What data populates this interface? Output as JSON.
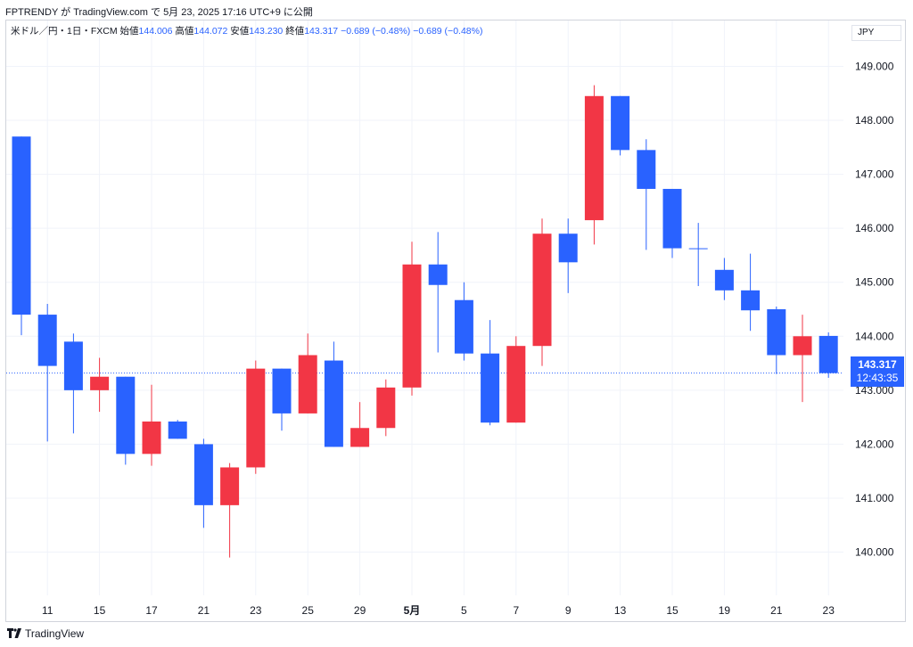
{
  "header": {
    "published_text": "FPTRENDY が TradingView.com で 5月 23, 2025 17:16 UTC+9 に公開"
  },
  "legend": {
    "symbol": "米ドル／円・1日・FXCM",
    "open_label": "始値",
    "open_value": "144.006",
    "high_label": "高値",
    "high_value": "144.072",
    "low_label": "安値",
    "low_value": "143.230",
    "close_label": "終値",
    "close_value": "143.317",
    "change1": "−0.689 (−0.48%)",
    "change2": "−0.689 (−0.48%)"
  },
  "currency_button": "JPY",
  "price_tag": {
    "price": "143.317",
    "countdown": "12:43:35"
  },
  "footer": {
    "brand": "TradingView"
  },
  "colors": {
    "up": "#f23645",
    "down": "#2962ff",
    "grid": "#f0f3fa",
    "last_price_line": "#2962ff"
  },
  "chart_data": {
    "type": "candlestick",
    "y_range": [
      139.2,
      149.85
    ],
    "y_ticks": [
      "149.000",
      "148.000",
      "147.000",
      "146.000",
      "145.000",
      "144.000",
      "143.000",
      "142.000",
      "141.000",
      "140.000"
    ],
    "y_tick_values": [
      149,
      148,
      147,
      146,
      145,
      144,
      143,
      142,
      141,
      140
    ],
    "x_labels": [
      {
        "index": 1,
        "label": "11",
        "bold": false
      },
      {
        "index": 3,
        "label": "15",
        "bold": false
      },
      {
        "index": 5,
        "label": "17",
        "bold": false
      },
      {
        "index": 7,
        "label": "21",
        "bold": false
      },
      {
        "index": 9,
        "label": "23",
        "bold": false
      },
      {
        "index": 11,
        "label": "25",
        "bold": false
      },
      {
        "index": 13,
        "label": "29",
        "bold": false
      },
      {
        "index": 15,
        "label": "5月",
        "bold": true
      },
      {
        "index": 17,
        "label": "5",
        "bold": false
      },
      {
        "index": 19,
        "label": "7",
        "bold": false
      },
      {
        "index": 21,
        "label": "9",
        "bold": false
      },
      {
        "index": 23,
        "label": "13",
        "bold": false
      },
      {
        "index": 25,
        "label": "15",
        "bold": false
      },
      {
        "index": 27,
        "label": "19",
        "bold": false
      },
      {
        "index": 29,
        "label": "21",
        "bold": false
      },
      {
        "index": 31,
        "label": "23",
        "bold": false
      }
    ],
    "last_price": 143.317,
    "candles": [
      {
        "o": 147.7,
        "h": 147.7,
        "l": 144.02,
        "c": 144.4
      },
      {
        "o": 144.4,
        "h": 144.6,
        "l": 142.05,
        "c": 143.45
      },
      {
        "o": 143.9,
        "h": 144.05,
        "l": 142.2,
        "c": 143.0
      },
      {
        "o": 143.0,
        "h": 143.6,
        "l": 142.6,
        "c": 143.25
      },
      {
        "o": 143.25,
        "h": 143.25,
        "l": 141.62,
        "c": 141.82
      },
      {
        "o": 141.82,
        "h": 143.1,
        "l": 141.6,
        "c": 142.42
      },
      {
        "o": 142.42,
        "h": 142.45,
        "l": 142.1,
        "c": 142.1
      },
      {
        "o": 142.0,
        "h": 142.1,
        "l": 140.45,
        "c": 140.87
      },
      {
        "o": 140.87,
        "h": 141.65,
        "l": 139.9,
        "c": 141.57
      },
      {
        "o": 141.57,
        "h": 143.55,
        "l": 141.45,
        "c": 143.4
      },
      {
        "o": 143.4,
        "h": 143.4,
        "l": 142.25,
        "c": 142.57
      },
      {
        "o": 142.57,
        "h": 144.05,
        "l": 142.57,
        "c": 143.65
      },
      {
        "o": 143.55,
        "h": 143.9,
        "l": 141.95,
        "c": 141.95
      },
      {
        "o": 141.95,
        "h": 142.78,
        "l": 141.95,
        "c": 142.3
      },
      {
        "o": 142.3,
        "h": 143.2,
        "l": 142.15,
        "c": 143.05
      },
      {
        "o": 143.05,
        "h": 145.75,
        "l": 142.9,
        "c": 145.33
      },
      {
        "o": 145.33,
        "h": 145.93,
        "l": 143.7,
        "c": 144.95
      },
      {
        "o": 144.67,
        "h": 145.0,
        "l": 143.55,
        "c": 143.68
      },
      {
        "o": 143.68,
        "h": 144.3,
        "l": 142.35,
        "c": 142.4
      },
      {
        "o": 142.4,
        "h": 144.0,
        "l": 142.4,
        "c": 143.82
      },
      {
        "o": 143.82,
        "h": 146.18,
        "l": 143.45,
        "c": 145.9
      },
      {
        "o": 145.9,
        "h": 146.18,
        "l": 144.8,
        "c": 145.37
      },
      {
        "o": 146.15,
        "h": 148.65,
        "l": 145.7,
        "c": 148.45
      },
      {
        "o": 148.45,
        "h": 148.45,
        "l": 147.35,
        "c": 147.45
      },
      {
        "o": 147.45,
        "h": 147.65,
        "l": 145.6,
        "c": 146.73
      },
      {
        "o": 146.73,
        "h": 146.73,
        "l": 145.45,
        "c": 145.63
      },
      {
        "o": 145.63,
        "h": 146.1,
        "l": 144.93,
        "c": 145.63
      },
      {
        "o": 145.23,
        "h": 145.45,
        "l": 144.67,
        "c": 144.85
      },
      {
        "o": 144.85,
        "h": 145.53,
        "l": 144.1,
        "c": 144.48
      },
      {
        "o": 144.5,
        "h": 144.55,
        "l": 143.3,
        "c": 143.65
      },
      {
        "o": 143.65,
        "h": 144.4,
        "l": 142.78,
        "c": 144.0
      },
      {
        "o": 144.006,
        "h": 144.072,
        "l": 143.23,
        "c": 143.317
      }
    ]
  }
}
